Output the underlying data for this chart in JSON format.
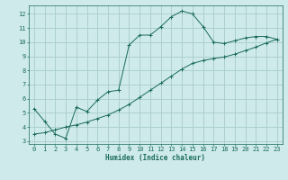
{
  "xlabel": "Humidex (Indice chaleur)",
  "background_color": "#ceeaea",
  "grid_color": "#a8cccc",
  "line_color": "#1a6b5a",
  "xlim": [
    -0.5,
    23.5
  ],
  "ylim": [
    2.8,
    12.6
  ],
  "xticks": [
    0,
    1,
    2,
    3,
    4,
    5,
    6,
    7,
    8,
    9,
    10,
    11,
    12,
    13,
    14,
    15,
    16,
    17,
    18,
    19,
    20,
    21,
    22,
    23
  ],
  "yticks": [
    3,
    4,
    5,
    6,
    7,
    8,
    9,
    10,
    11,
    12
  ],
  "series1_x": [
    0,
    1,
    2,
    3,
    4,
    5,
    6,
    7,
    8,
    9,
    10,
    11,
    12,
    13,
    14,
    15,
    16,
    17,
    18,
    19,
    20,
    21,
    22,
    23
  ],
  "series1_y": [
    5.3,
    4.4,
    3.5,
    3.2,
    5.4,
    5.1,
    5.9,
    6.5,
    6.6,
    9.8,
    10.5,
    10.5,
    11.1,
    11.8,
    12.2,
    12.0,
    11.1,
    10.0,
    9.9,
    10.1,
    10.3,
    10.4,
    10.4,
    10.2
  ],
  "series2_x": [
    0,
    1,
    2,
    3,
    4,
    5,
    6,
    7,
    8,
    9,
    10,
    11,
    12,
    13,
    14,
    15,
    16,
    17,
    18,
    19,
    20,
    21,
    22,
    23
  ],
  "series2_y": [
    3.5,
    3.6,
    3.8,
    4.0,
    4.15,
    4.35,
    4.6,
    4.85,
    5.2,
    5.6,
    6.1,
    6.6,
    7.1,
    7.6,
    8.1,
    8.5,
    8.7,
    8.85,
    8.95,
    9.15,
    9.4,
    9.65,
    9.95,
    10.2
  ]
}
